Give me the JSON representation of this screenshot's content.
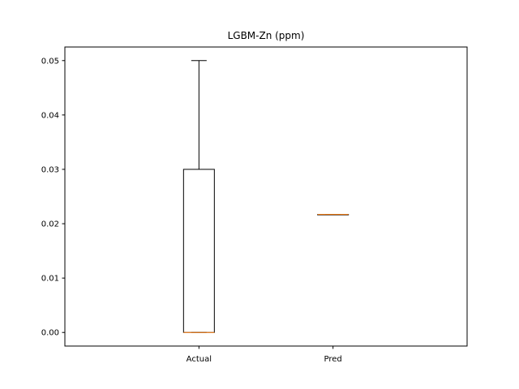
{
  "chart_data": {
    "type": "box",
    "title": "LGBM-Zn (ppm)",
    "xlabel": "",
    "ylabel": "",
    "categories": [
      "Actual",
      "Pred"
    ],
    "boxes": [
      {
        "label": "Actual",
        "whisker_low": 0.0,
        "q1": 0.0,
        "median": 0.0,
        "q3": 0.03,
        "whisker_high": 0.05
      },
      {
        "label": "Pred",
        "whisker_low": 0.0217,
        "q1": 0.0217,
        "median": 0.0217,
        "q3": 0.0217,
        "whisker_high": 0.0217
      }
    ],
    "ylim": [
      -0.0025,
      0.0525
    ],
    "yticks": [
      0.0,
      0.01,
      0.02,
      0.03,
      0.04,
      0.05
    ],
    "ytick_labels": [
      "0.00",
      "0.01",
      "0.02",
      "0.03",
      "0.04",
      "0.05"
    ],
    "grid": false,
    "colors": {
      "box": "#000000",
      "median": "#ff7f0e"
    }
  }
}
